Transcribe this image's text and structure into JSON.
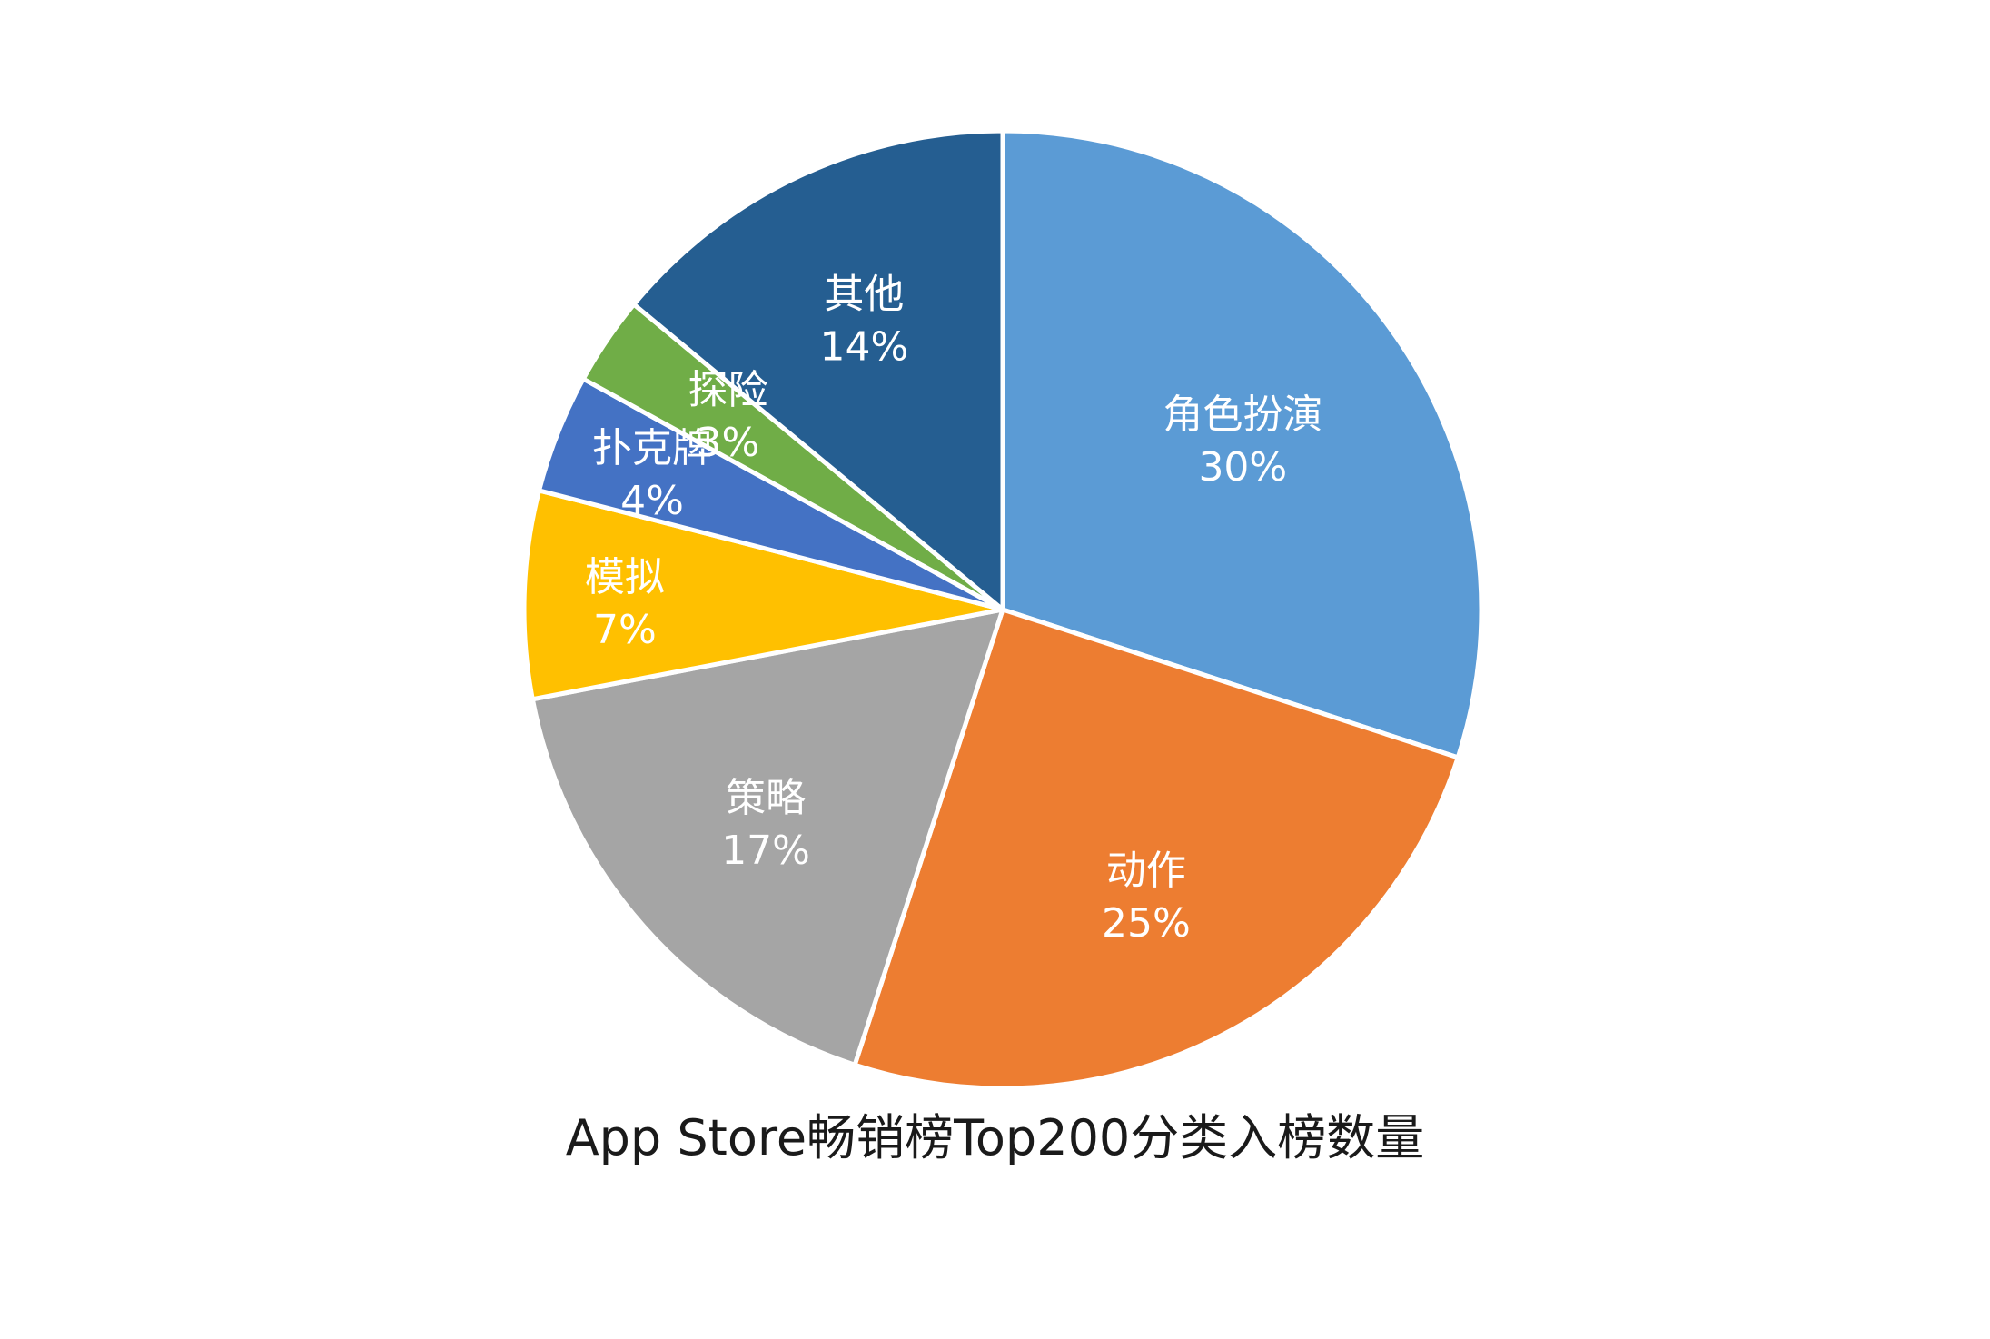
{
  "chart_data": {
    "type": "pie",
    "title": "App Store畅销榜Top200分类入榜数量",
    "slices": [
      {
        "label": "角色扮演",
        "value": 30,
        "percent_label": "30%",
        "color": "#5B9BD5"
      },
      {
        "label": "动作",
        "value": 25,
        "percent_label": "25%",
        "color": "#ED7D31"
      },
      {
        "label": "策略",
        "value": 17,
        "percent_label": "17%",
        "color": "#A5A5A5"
      },
      {
        "label": "模拟",
        "value": 7,
        "percent_label": "7%",
        "color": "#FFC000"
      },
      {
        "label": "扑克牌",
        "value": 4,
        "percent_label": "4%",
        "color": "#4472C4"
      },
      {
        "label": "探险",
        "value": 3,
        "percent_label": "3%",
        "color": "#70AD47"
      },
      {
        "label": "其他",
        "value": 14,
        "percent_label": "14%",
        "color": "#255E91"
      }
    ],
    "start": "top",
    "direction": "clockwise",
    "legend": "none",
    "data_labels": "inside"
  }
}
